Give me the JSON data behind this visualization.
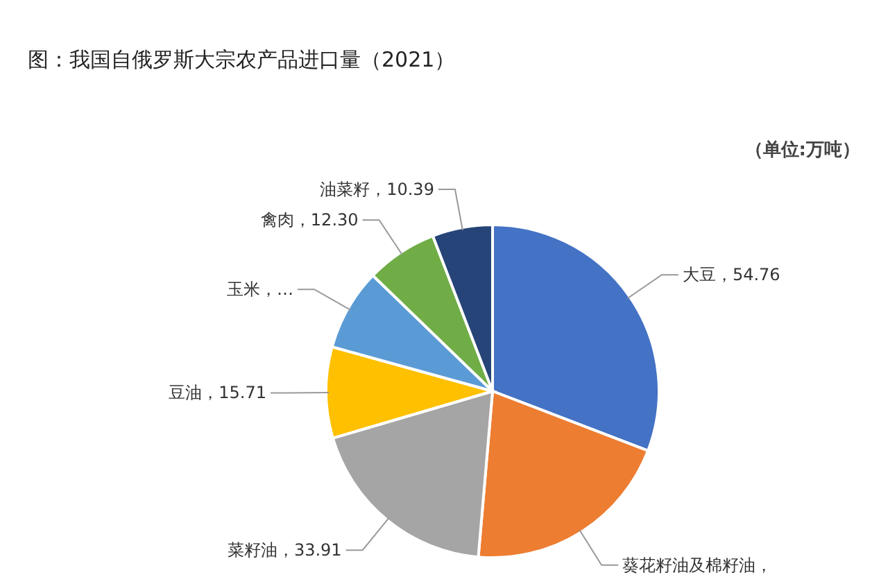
{
  "chart_data": {
    "type": "pie",
    "title": "图：我国自俄罗斯大宗农产品进口量（2021）",
    "categories": [
      "大豆",
      "葵花籽油及棉籽油",
      "菜籽油",
      "豆油",
      "玉米",
      "禽肉",
      "油菜籽"
    ],
    "values": [
      54.76,
      36.5,
      33.91,
      15.71,
      14.1,
      12.3,
      10.39
    ],
    "value_labels": [
      "，54.76",
      "，",
      "，33.91",
      "，15.71",
      "，…",
      "，12.30",
      "，10.39"
    ],
    "colors": [
      "#4472c4",
      "#ed7d31",
      "#a5a5a5",
      "#ffc000",
      "#5b9bd5",
      "#70ad47",
      "#264478"
    ],
    "annotations": [
      "（单位:万吨）"
    ],
    "legend": false
  }
}
